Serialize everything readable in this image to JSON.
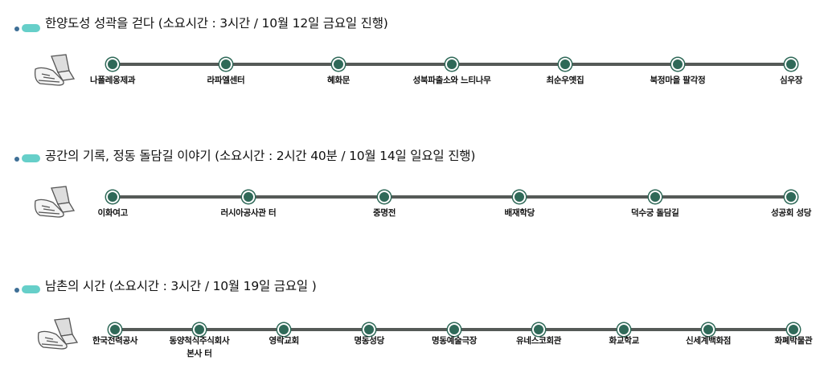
{
  "routes": [
    {
      "title": "한양도성 성곽을 걷다 (소요시간 : 3시간 / 10월 12일 금요일 진행)",
      "stops": [
        "나폴레옹제과",
        "라파엘센터",
        "혜화문",
        "성북파출소와 느티나무",
        "최순우옛집",
        "북정마을 팔각정",
        "심우장"
      ]
    },
    {
      "title": "공간의 기록, 정동 돌담길 이야기 (소요시간 : 2시간 40분 / 10월 14일 일요일 진행)",
      "stops": [
        "이화여고",
        "러시아공사관 터",
        "중명전",
        "배재학당",
        "덕수궁 돌담길",
        "성공회 성당"
      ]
    },
    {
      "title": "남촌의 시간 (소요시간 : 3시간 / 10월  19일 금요일 )",
      "stops": [
        "한국전력공사",
        "동양척식주식회사 본사 터",
        "영락교회",
        "명동성당",
        "명동예술극장",
        "유네스코회관",
        "화교학교",
        "신세계백화점",
        "화폐박물관"
      ]
    }
  ],
  "colors": {
    "bullet_dot": "#3e6f96",
    "bullet_pill": "#66cfc9",
    "track": "#555a57",
    "stop": "#2f6958"
  },
  "icons": {
    "route_start": "walking-shoe-icon"
  }
}
